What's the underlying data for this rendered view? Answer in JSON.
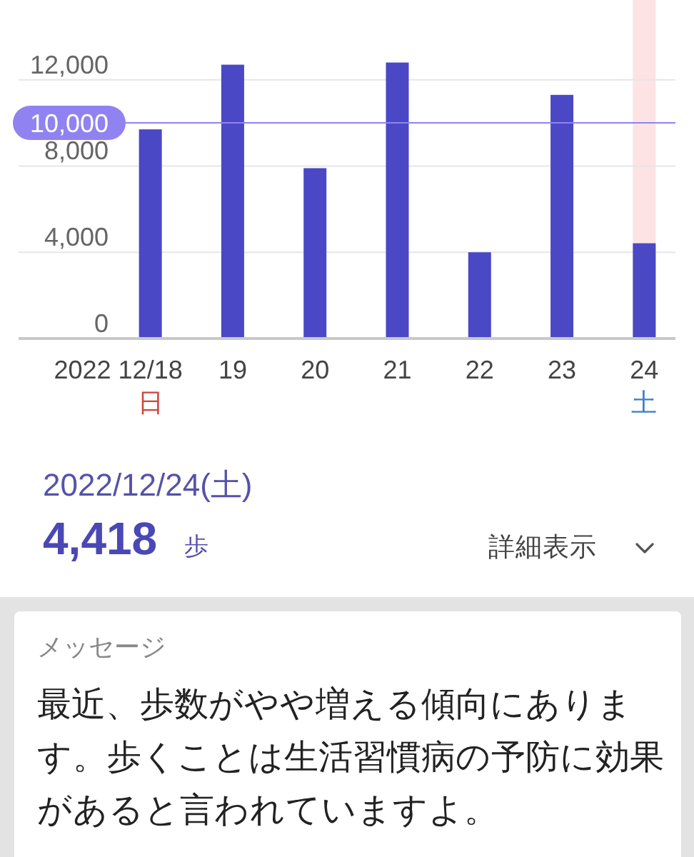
{
  "chart_data": {
    "type": "bar",
    "categories": [
      "2022 12/18\n日",
      "19",
      "20",
      "21",
      "22",
      "23",
      "24\n土"
    ],
    "values": [
      9700,
      12700,
      7900,
      12800,
      4000,
      11300,
      4418
    ],
    "color": "#4a48c5",
    "ylim": [
      0,
      15700
    ],
    "yticks": [
      0,
      {
        "value": 4000,
        "label": "4,000"
      },
      {
        "value": 8000,
        "label": "8,000"
      },
      {
        "value": 12000,
        "label": "12,000"
      }
    ],
    "grid": "y",
    "ref_lines": [
      {
        "axis": "y",
        "value": 10000,
        "label": "10,000",
        "color": "#9082f0"
      }
    ],
    "bands": [
      {
        "axis": "x",
        "from": "24\n土",
        "to": "24\n土",
        "color": "#fde3e3"
      }
    ],
    "annotations": [
      "2022/12/24(土)",
      "4,418",
      "歩",
      "詳細表示",
      "メッセージ",
      "最近、歩数がやや増える傾向にあります。歩くことは生活習慣病の予防に効果があると言われていますよ。"
    ]
  }
}
